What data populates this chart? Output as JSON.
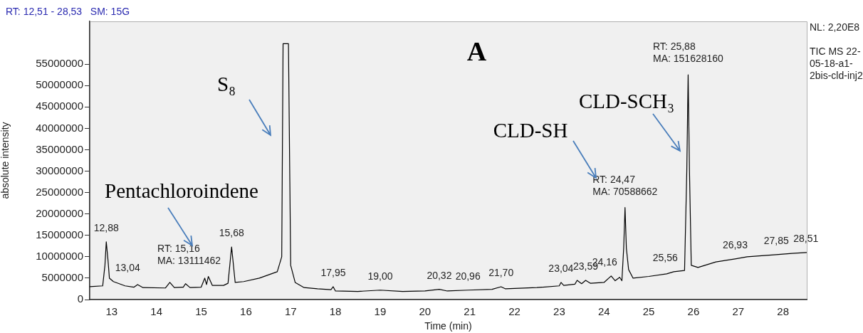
{
  "chart_data": {
    "type": "line",
    "xlabel": "Time (min)",
    "ylabel": "absolute intensity",
    "xlim": [
      12.51,
      28.53
    ],
    "xticks": [
      13,
      14,
      15,
      16,
      17,
      18,
      19,
      20,
      21,
      22,
      23,
      24,
      25,
      26,
      27,
      28
    ],
    "ylim": [
      0,
      65000000
    ],
    "yticks": [
      0,
      5000000,
      10000000,
      15000000,
      20000000,
      25000000,
      30000000,
      35000000,
      40000000,
      45000000,
      50000000,
      55000000
    ],
    "grid": false,
    "legend": false,
    "marker": "none",
    "line_style": "solid",
    "x": [
      12.51,
      12.8,
      12.85,
      12.88,
      12.92,
      12.95,
      13.04,
      13.3,
      13.5,
      13.58,
      13.7,
      14.2,
      14.3,
      14.4,
      14.6,
      14.65,
      14.75,
      15.0,
      15.08,
      15.12,
      15.16,
      15.25,
      15.5,
      15.6,
      15.68,
      15.76,
      15.95,
      16.3,
      16.7,
      16.8,
      16.83,
      16.95,
      17.0,
      17.1,
      17.3,
      17.6,
      17.9,
      17.95,
      18.0,
      18.5,
      19.0,
      19.5,
      20.0,
      20.32,
      20.5,
      20.96,
      21.5,
      21.7,
      21.8,
      22.5,
      23.0,
      23.04,
      23.1,
      23.35,
      23.4,
      23.5,
      23.59,
      23.7,
      24.0,
      24.16,
      24.25,
      24.35,
      24.4,
      24.44,
      24.47,
      24.5,
      24.55,
      24.65,
      25.0,
      25.4,
      25.56,
      25.8,
      25.85,
      25.88,
      25.91,
      25.95,
      26.1,
      26.5,
      26.93,
      27.2,
      27.85,
      28.2,
      28.53
    ],
    "series": [
      {
        "color": "#000000",
        "values": [
          3000000,
          3200000,
          8000000,
          13500000,
          9000000,
          5000000,
          4200000,
          3200000,
          2900000,
          3500000,
          2800000,
          2700000,
          4000000,
          2800000,
          2900000,
          3700000,
          2800000,
          2900000,
          5000000,
          3500000,
          5400000,
          3300000,
          3300000,
          3800000,
          12300000,
          4000000,
          4200000,
          5000000,
          6500000,
          10000000,
          59800000,
          59800000,
          8000000,
          4000000,
          2800000,
          2500000,
          2300000,
          3000000,
          2000000,
          1900000,
          2200000,
          1900000,
          2000000,
          2400000,
          2000000,
          2200000,
          2400000,
          3000000,
          2500000,
          2800000,
          3200000,
          4000000,
          3300000,
          3600000,
          4500000,
          3700000,
          4500000,
          3800000,
          4000000,
          5500000,
          4400000,
          5200000,
          4400000,
          12000000,
          21500000,
          12000000,
          7000000,
          5000000,
          5400000,
          6000000,
          6500000,
          6800000,
          30000000,
          52500000,
          30000000,
          8000000,
          7500000,
          8800000,
          9500000,
          10000000,
          10500000,
          10800000,
          11000000
        ]
      }
    ],
    "annotations": [
      "A",
      "RT: 12,51 - 28,53   SM: 15G",
      "NL: 2,20E8",
      "TIC  MS 22-05-18-a1-2bis-cld-inj2",
      {
        "text": "12,88",
        "x": 12.88,
        "y": 13500000
      },
      {
        "text": "13,04",
        "x": 13.04,
        "y": 4200000
      },
      {
        "text": "15,68",
        "x": 15.68,
        "y": 12300000
      },
      {
        "text": "17,95",
        "x": 17.95,
        "y": 3000000
      },
      {
        "text": "19,00",
        "x": 19.0,
        "y": 2200000
      },
      {
        "text": "20,32",
        "x": 20.32,
        "y": 2400000
      },
      {
        "text": "20,96",
        "x": 20.96,
        "y": 2200000
      },
      {
        "text": "21,70",
        "x": 21.7,
        "y": 3000000
      },
      {
        "text": "23,04",
        "x": 23.04,
        "y": 4000000
      },
      {
        "text": "23,59",
        "x": 23.59,
        "y": 4500000
      },
      {
        "text": "24,16",
        "x": 24.16,
        "y": 5500000
      },
      {
        "text": "25,56",
        "x": 25.56,
        "y": 6500000
      },
      {
        "text": "26,93",
        "x": 26.93,
        "y": 9500000
      },
      {
        "text": "27,85",
        "x": 27.85,
        "y": 10500000
      },
      {
        "text": "28,51",
        "x": 28.51,
        "y": 11000000
      },
      {
        "text": "RT: 15,16\nMA: 13111462",
        "x": 15.16,
        "y": 5400000
      },
      {
        "text": "RT: 24,47\nMA: 70588662",
        "x": 24.47,
        "y": 21500000
      },
      {
        "text": "RT: 25,88\nMA: 151628160",
        "x": 25.88,
        "y": 52500000
      },
      "S₈",
      "Pentachloroindene",
      "CLD-SH",
      "CLD-SCH₃"
    ]
  }
}
